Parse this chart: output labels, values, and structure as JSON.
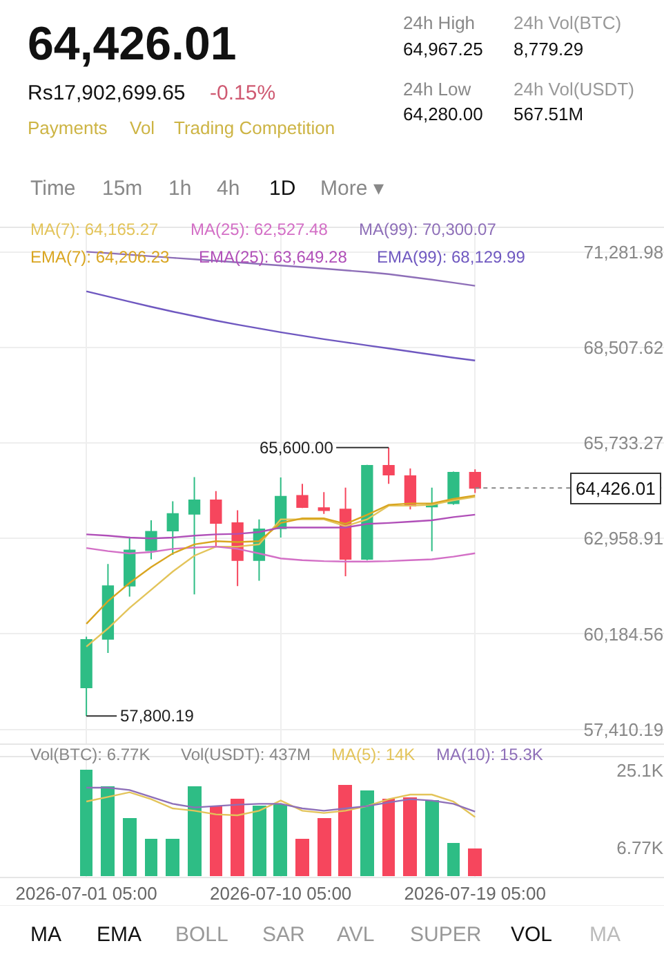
{
  "chart_data": [
    {
      "type": "other",
      "title": "64,426.01",
      "annotations": [
        "Rs17,902,699.65",
        "-0.15%",
        "Payments",
        "Vol",
        "Trading Competition",
        "24h High",
        "64,967.25",
        "24h Low",
        "64,280.00",
        "24h Vol(BTC)",
        "8,779.29",
        "24h Vol(USDT)",
        "567.51M",
        "Time",
        "15m",
        "1h",
        "4h",
        "1D",
        "More ▾"
      ]
    },
    {
      "type": "candlestick",
      "x": [
        "2026-07-01",
        "2026-07-02",
        "2026-07-03",
        "2026-07-04",
        "2026-07-05",
        "2026-07-06",
        "2026-07-07",
        "2026-07-08",
        "2026-07-09",
        "2026-07-10",
        "2026-07-11",
        "2026-07-12",
        "2026-07-13",
        "2026-07-14",
        "2026-07-15",
        "2026-07-16",
        "2026-07-17",
        "2026-07-18",
        "2026-07-19"
      ],
      "ohlc": [
        [
          58627,
          60100,
          57800.19,
          60014
        ],
        [
          60037,
          62217,
          59630,
          61572
        ],
        [
          61583,
          63010,
          61266,
          62614
        ],
        [
          62614,
          63486,
          62352,
          63157
        ],
        [
          63184,
          64040,
          62483,
          63672
        ],
        [
          63672,
          64742,
          61334,
          64068
        ],
        [
          64068,
          64334,
          62721,
          63407
        ],
        [
          63407,
          63779,
          61572,
          62324
        ],
        [
          62324,
          63513,
          61730,
          63224
        ],
        [
          63248,
          64730,
          62986,
          64175
        ],
        [
          64199,
          64544,
          63843,
          63870
        ],
        [
          63843,
          64306,
          63672,
          63779
        ],
        [
          63803,
          64437,
          61861,
          62364
        ],
        [
          62364,
          65099,
          62324,
          65071
        ],
        [
          65071,
          65600,
          64544,
          64809
        ],
        [
          64769,
          64991,
          63803,
          63910
        ],
        [
          63882,
          64437,
          62586,
          63962
        ],
        [
          63976,
          64900,
          63937,
          64872
        ],
        [
          64872,
          64967.25,
          64280.0,
          64426.01
        ]
      ],
      "series": [
        {
          "type": "line",
          "name": "MA(7): 64,165.27",
          "color": "#e3c45a",
          "values": [
            59815,
            60343,
            60937,
            61466,
            61994,
            62457,
            62721,
            62721,
            62787,
            63513,
            63513,
            63513,
            63315,
            63513,
            63910,
            63910,
            63936,
            64068,
            64165.27
          ]
        },
        {
          "type": "line",
          "name": "MA(25): 62,527.48",
          "color": "#d36fc6",
          "values": [
            62681,
            62589,
            62523,
            62562,
            62655,
            62694,
            62721,
            62655,
            62523,
            62377,
            62325,
            62298,
            62285,
            62285,
            62298,
            62325,
            62351,
            62430,
            62527.48
          ]
        },
        {
          "type": "line",
          "name": "MA(99): 70,300.07",
          "color": "#8e6fb8",
          "values": [
            71290,
            71250,
            71205,
            71160,
            71115,
            71070,
            71025,
            70980,
            70935,
            70890,
            70845,
            70800,
            70750,
            70700,
            70640,
            70560,
            70480,
            70390,
            70300.07
          ]
        },
        {
          "type": "line",
          "name": "EMA(7): 64,206.23",
          "color": "#d9a520",
          "values": [
            60475,
            61136,
            61664,
            62126,
            62523,
            62787,
            62879,
            62853,
            62879,
            63408,
            63540,
            63540,
            63381,
            63645,
            63936,
            63976,
            63976,
            64108,
            64206.23
          ]
        },
        {
          "type": "line",
          "name": "EMA(25): 63,649.28",
          "color": "#b04fb8",
          "values": [
            63077,
            63038,
            62985,
            62959,
            62985,
            63038,
            63077,
            63091,
            63144,
            63276,
            63276,
            63276,
            63276,
            63381,
            63408,
            63447,
            63487,
            63580,
            63649.28
          ]
        },
        {
          "type": "line",
          "name": "EMA(99): 68,129.99",
          "color": "#6f58c0",
          "values": [
            70139,
            69990,
            69840,
            69690,
            69550,
            69420,
            69290,
            69170,
            69060,
            68950,
            68850,
            68750,
            68660,
            68570,
            68480,
            68390,
            68300,
            68210,
            68129.99
          ]
        }
      ],
      "ylim": [
        57000,
        71980
      ],
      "yticks": [
        {
          "value": 57410.19,
          "label": "57,410.19"
        },
        {
          "value": 60184.56,
          "label": "60,184.56"
        },
        {
          "value": 62958.91,
          "label": "62,958.91"
        },
        {
          "value": 65733.27,
          "label": "65,733.27"
        },
        {
          "value": 68507.62,
          "label": "68,507.62"
        },
        {
          "value": 71281.98,
          "label": "71,281.98"
        }
      ],
      "xlim": [
        "2026-06-27T00:00",
        "2026-07-27T18:00"
      ],
      "xticks": [
        {
          "value": "2026-07-01",
          "label": null
        },
        {
          "value": "2026-07-10",
          "label": null
        },
        {
          "value": "2026-07-19",
          "label": null
        }
      ],
      "ref_lines": [
        {
          "axis": "y",
          "value": 64426.01,
          "label": "64,426.01",
          "line_style": "dotted",
          "color": "#888888"
        }
      ],
      "annotations": [
        {
          "text": "65,600.00",
          "x": "2026-07-15",
          "y": 65600
        },
        {
          "text": "57,800.19",
          "x": "2026-07-01",
          "y": 57800.19
        }
      ],
      "grid": true,
      "tick_labels": "y"
    },
    {
      "type": "bar",
      "x": [
        "2026-07-01",
        "2026-07-02",
        "2026-07-03",
        "2026-07-04",
        "2026-07-05",
        "2026-07-06",
        "2026-07-07",
        "2026-07-08",
        "2026-07-09",
        "2026-07-10",
        "2026-07-11",
        "2026-07-12",
        "2026-07-13",
        "2026-07-14",
        "2026-07-15",
        "2026-07-16",
        "2026-07-17",
        "2026-07-18",
        "2026-07-19"
      ],
      "series": [
        {
          "type": "bar",
          "values": [
            25100,
            21158,
            13866,
            8984,
            8984,
            21158,
            16796,
            18423,
            16601,
            17121,
            8984,
            13866,
            21483,
            20376,
            18228,
            18749,
            17903,
            7910,
            6770
          ],
          "colors": [
            "#2ebd85",
            "#2ebd85",
            "#2ebd85",
            "#2ebd85",
            "#2ebd85",
            "#2ebd85",
            "#f6465d",
            "#f6465d",
            "#2ebd85",
            "#2ebd85",
            "#f6465d",
            "#f6465d",
            "#f6465d",
            "#2ebd85",
            "#f6465d",
            "#f6465d",
            "#2ebd85",
            "#2ebd85",
            "#f6465d"
          ]
        },
        {
          "type": "line",
          "name": "MA(5): 14K",
          "color": "#e3c45a",
          "values": [
            17675,
            18759,
            19846,
            18218,
            16047,
            15504,
            14638,
            14420,
            15504,
            17893,
            15504,
            14963,
            15504,
            16591,
            18218,
            19302,
            19302,
            17675,
            14000
          ]
        },
        {
          "type": "line",
          "name": "MA(10): 15.3K",
          "color": "#8e6fb8",
          "values": [
            20930,
            20930,
            20386,
            18759,
            17131,
            16265,
            16591,
            16916,
            17131,
            17131,
            16047,
            15504,
            16047,
            16591,
            17457,
            18218,
            17893,
            17131,
            15300
          ]
        }
      ],
      "ylim": [
        0,
        28090
      ],
      "yticks": [
        {
          "value": 6770,
          "label": "6.77K"
        },
        {
          "value": 25100,
          "label": "25.1K"
        }
      ],
      "xlim": [
        "2026-06-27T00:00",
        "2026-07-27T18:00"
      ],
      "xticks": [
        {
          "value": "2026-07-01",
          "label": "2026-07-01 05:00"
        },
        {
          "value": "2026-07-10",
          "label": "2026-07-10 05:00"
        },
        {
          "value": "2026-07-19",
          "label": "2026-07-19 05:00"
        }
      ],
      "annotations": [
        "Vol(BTC): 6.77K",
        "Vol(USDT): 437M"
      ],
      "grid": "x"
    },
    {
      "type": "other",
      "annotations": [
        "MA",
        "EMA",
        "BOLL",
        "SAR",
        "AVL",
        "SUPER",
        "VOL",
        "MA"
      ]
    }
  ]
}
